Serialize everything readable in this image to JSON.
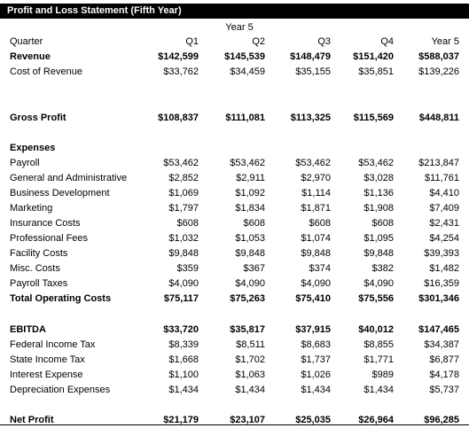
{
  "title": "Profit and Loss Statement (Fifth Year)",
  "year_header": "Year 5",
  "rows": [
    {
      "label": "Quarter",
      "vals": [
        "Q1",
        "Q2",
        "Q3",
        "Q4",
        "Year 5"
      ]
    },
    {
      "label": "Revenue",
      "vals": [
        "$142,599",
        "$145,539",
        "$148,479",
        "$151,420",
        "$588,037"
      ]
    },
    {
      "label": "Cost of Revenue",
      "vals": [
        "$33,762",
        "$34,459",
        "$35,155",
        "$35,851",
        "$139,226"
      ]
    },
    {
      "label": "Gross Profit",
      "vals": [
        "$108,837",
        "$111,081",
        "$113,325",
        "$115,569",
        "$448,811"
      ]
    },
    {
      "label": "Expenses",
      "vals": [
        "",
        "",
        "",
        "",
        ""
      ]
    },
    {
      "label": "Payroll",
      "vals": [
        "$53,462",
        "$53,462",
        "$53,462",
        "$53,462",
        "$213,847"
      ]
    },
    {
      "label": "General and Administrative",
      "vals": [
        "$2,852",
        "$2,911",
        "$2,970",
        "$3,028",
        "$11,761"
      ]
    },
    {
      "label": "Business Development",
      "vals": [
        "$1,069",
        "$1,092",
        "$1,114",
        "$1,136",
        "$4,410"
      ]
    },
    {
      "label": "Marketing",
      "vals": [
        "$1,797",
        "$1,834",
        "$1,871",
        "$1,908",
        "$7,409"
      ]
    },
    {
      "label": "Insurance Costs",
      "vals": [
        "$608",
        "$608",
        "$608",
        "$608",
        "$2,431"
      ]
    },
    {
      "label": "Professional Fees",
      "vals": [
        "$1,032",
        "$1,053",
        "$1,074",
        "$1,095",
        "$4,254"
      ]
    },
    {
      "label": "Facility Costs",
      "vals": [
        "$9,848",
        "$9,848",
        "$9,848",
        "$9,848",
        "$39,393"
      ]
    },
    {
      "label": "Misc. Costs",
      "vals": [
        "$359",
        "$367",
        "$374",
        "$382",
        "$1,482"
      ]
    },
    {
      "label": "Payroll Taxes",
      "vals": [
        "$4,090",
        "$4,090",
        "$4,090",
        "$4,090",
        "$16,359"
      ]
    },
    {
      "label": "Total Operating Costs",
      "vals": [
        "$75,117",
        "$75,263",
        "$75,410",
        "$75,556",
        "$301,346"
      ]
    },
    {
      "label": "EBITDA",
      "vals": [
        "$33,720",
        "$35,817",
        "$37,915",
        "$40,012",
        "$147,465"
      ]
    },
    {
      "label": "Federal Income Tax",
      "vals": [
        "$8,339",
        "$8,511",
        "$8,683",
        "$8,855",
        "$34,387"
      ]
    },
    {
      "label": "State Income Tax",
      "vals": [
        "$1,668",
        "$1,702",
        "$1,737",
        "$1,771",
        "$6,877"
      ]
    },
    {
      "label": "Interest Expense",
      "vals": [
        "$1,100",
        "$1,063",
        "$1,026",
        "$989",
        "$4,178"
      ]
    },
    {
      "label": "Depreciation Expenses",
      "vals": [
        "$1,434",
        "$1,434",
        "$1,434",
        "$1,434",
        "$5,737"
      ]
    },
    {
      "label": "Net Profit",
      "vals": [
        "$21,179",
        "$23,107",
        "$25,035",
        "$26,964",
        "$96,285"
      ]
    }
  ]
}
